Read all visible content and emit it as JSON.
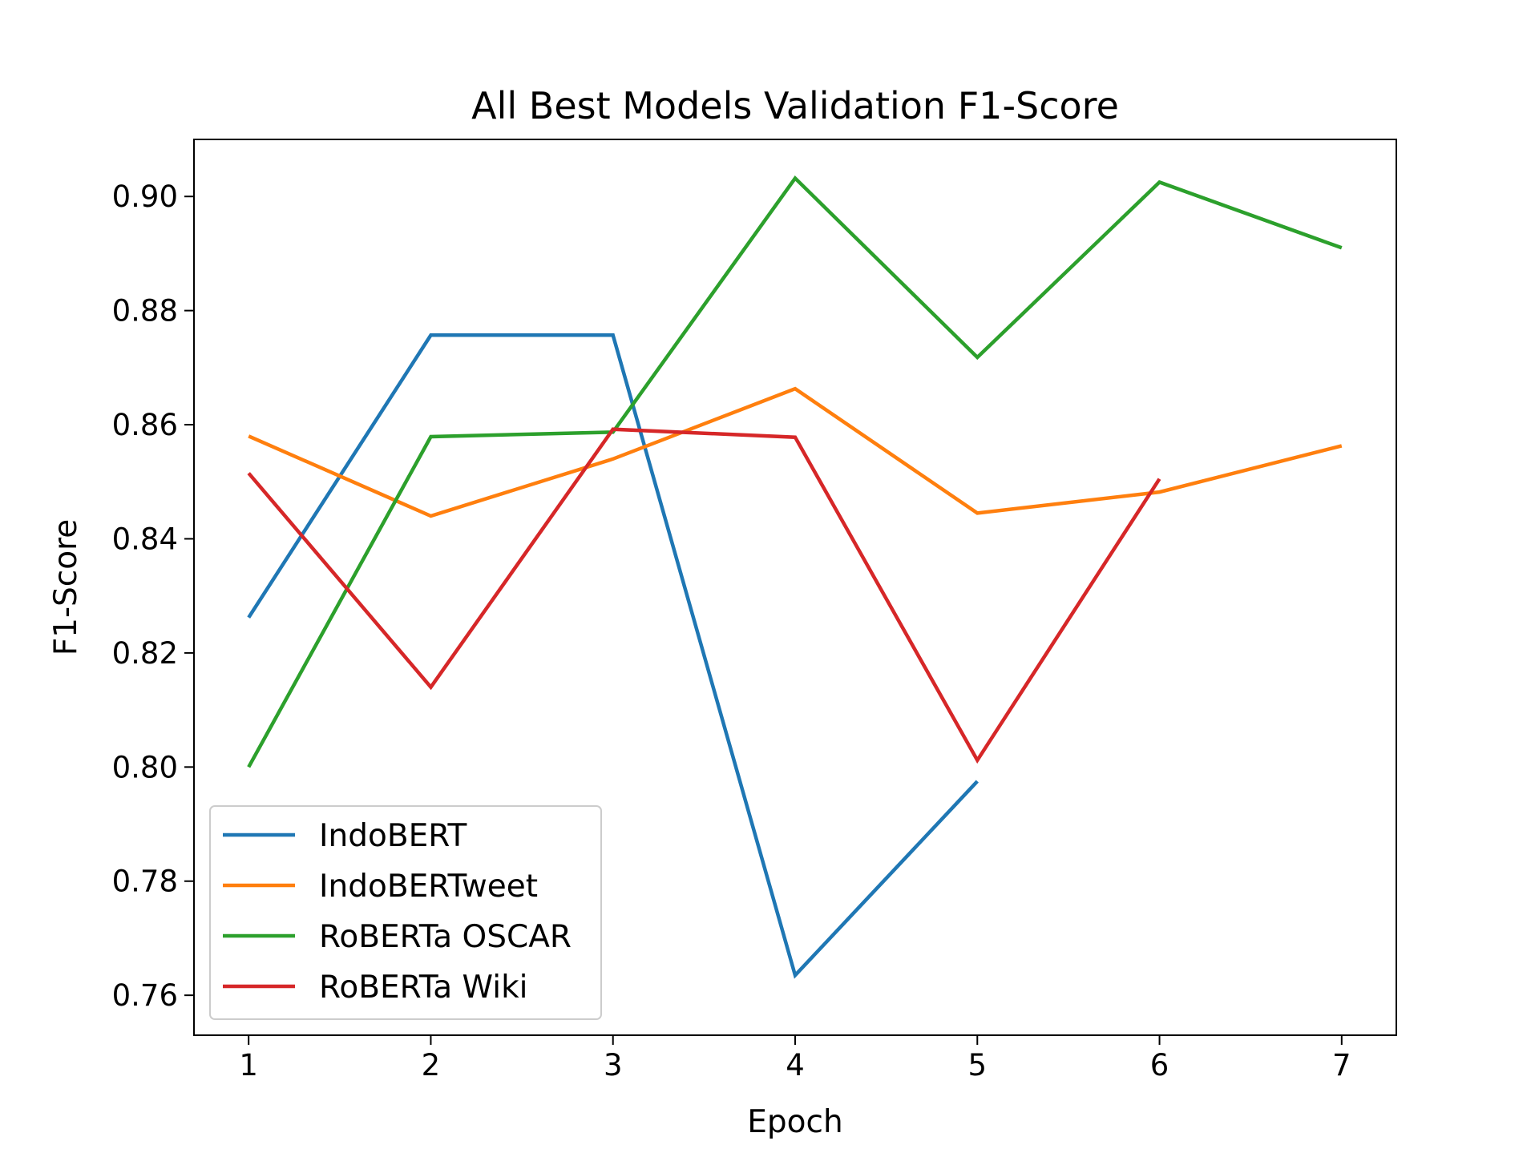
{
  "chart_data": {
    "type": "line",
    "title": "All Best Models Validation F1-Score",
    "xlabel": "Epoch",
    "ylabel": "F1-Score",
    "xlim": [
      0.7,
      7.3
    ],
    "ylim": [
      0.753,
      0.91
    ],
    "x_ticks": [
      1,
      2,
      3,
      4,
      5,
      6,
      7
    ],
    "y_ticks": [
      "0.76",
      "0.78",
      "0.80",
      "0.82",
      "0.84",
      "0.86",
      "0.88",
      "0.90"
    ],
    "grid": false,
    "legend_position": "lower-left",
    "series": [
      {
        "name": "IndoBERT",
        "color": "#1f77b4",
        "x": [
          1,
          2,
          3,
          4,
          5
        ],
        "y": [
          0.8262,
          0.8757,
          0.8757,
          0.7635,
          0.7975
        ]
      },
      {
        "name": "IndoBERTweet",
        "color": "#ff7f0e",
        "x": [
          1,
          2,
          3,
          4,
          5,
          6,
          7
        ],
        "y": [
          0.858,
          0.844,
          0.854,
          0.8663,
          0.8445,
          0.8482,
          0.8563
        ]
      },
      {
        "name": "RoBERTa OSCAR",
        "color": "#2ca02c",
        "x": [
          1,
          2,
          3,
          4,
          5,
          6,
          7
        ],
        "y": [
          0.8,
          0.8579,
          0.8587,
          0.9032,
          0.8718,
          0.9025,
          0.891
        ]
      },
      {
        "name": "RoBERTa Wiki",
        "color": "#d62728",
        "x": [
          1,
          2,
          3,
          4,
          5,
          6
        ],
        "y": [
          0.8515,
          0.814,
          0.8592,
          0.8578,
          0.8012,
          0.8505
        ]
      }
    ]
  }
}
